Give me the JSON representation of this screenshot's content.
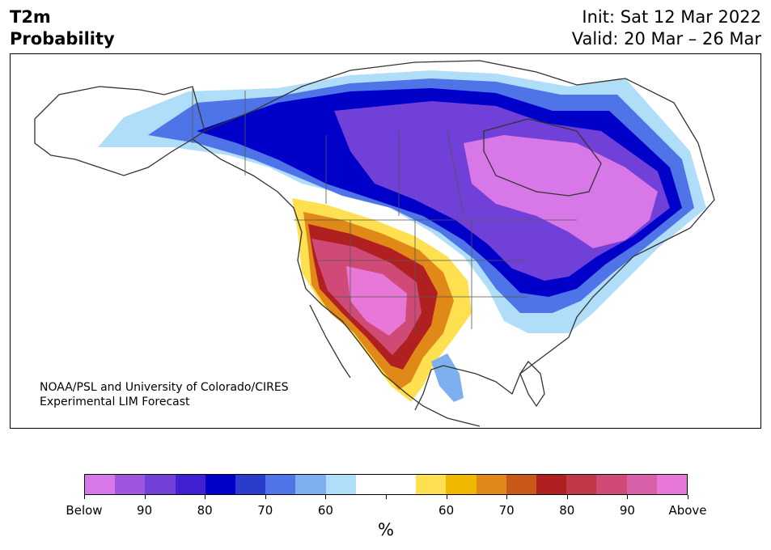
{
  "header": {
    "title_line1": "T2m",
    "title_line2": "Probability",
    "init": "Init: Sat 12 Mar 2022",
    "valid": "Valid: 20 Mar – 26 Mar"
  },
  "credit": {
    "line1": "NOAA/PSL and University of Colorado/CIRES",
    "line2": "Experimental LIM Forecast"
  },
  "colorbar": {
    "colors": [
      "#d878e8",
      "#a055e0",
      "#7040d8",
      "#4020d0",
      "#0000c8",
      "#2a3ccc",
      "#4f74e8",
      "#7eb0f0",
      "#b0ddf8",
      "#ffffff",
      "#ffffff",
      "#ffe050",
      "#f0b800",
      "#e08818",
      "#c85818",
      "#b02020",
      "#c03848",
      "#d04a78",
      "#d860a8",
      "#e878d8"
    ],
    "ticks": [
      "Below",
      "90",
      "80",
      "70",
      "60",
      "",
      "60",
      "70",
      "80",
      "90",
      "Above"
    ],
    "unit": "%"
  },
  "map": {
    "map_type": "T2m probability forecast, North America",
    "below_normal_colors": [
      "#d878e8",
      "#a055e0",
      "#7040d8",
      "#4020d0",
      "#0000c8",
      "#2a3ccc",
      "#4f74e8",
      "#7eb0f0",
      "#b0ddf8"
    ],
    "above_normal_colors": [
      "#ffe050",
      "#f0b800",
      "#e08818",
      "#c85818",
      "#b02020",
      "#c03848",
      "#d04a78",
      "#d860a8",
      "#e878d8"
    ]
  }
}
